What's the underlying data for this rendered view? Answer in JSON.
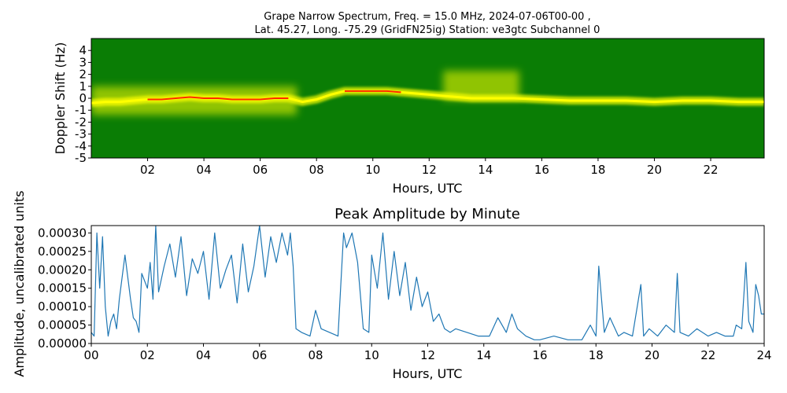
{
  "figure": {
    "title_line1": "Grape Narrow Spectrum, Freq. = 15.0 MHz, 2024-07-06T00-00 ,",
    "title_line2": "Lat.  45.27, Long. -75.29 (GridFN25ig) Station: ve3gtc Subchannel 0"
  },
  "chart_data": [
    {
      "type": "heatmap",
      "title": "",
      "xlabel": "Hours, UTC",
      "ylabel": "Doppler Shift (Hz)",
      "xlim": [
        0,
        23.9
      ],
      "ylim": [
        -5,
        5
      ],
      "x_ticks": [
        2,
        4,
        6,
        8,
        10,
        12,
        14,
        16,
        18,
        20,
        22
      ],
      "x_tick_labels": [
        "02",
        "04",
        "06",
        "08",
        "10",
        "12",
        "14",
        "16",
        "18",
        "20",
        "22"
      ],
      "y_ticks": [
        4,
        3,
        2,
        1,
        0,
        -1,
        -2,
        -3,
        -4,
        -5
      ],
      "y_tick_labels": [
        "4",
        "3",
        "2",
        "1",
        "0",
        "-1",
        "-2",
        "-3",
        "-4",
        "-5"
      ],
      "background_color": "#0a7d05",
      "signal_color": "#ffff00",
      "peak_color": "#ff2a00",
      "doppler_trace": {
        "x": [
          0,
          0.5,
          1,
          1.5,
          2,
          2.5,
          3,
          3.5,
          4,
          4.5,
          5,
          5.5,
          6,
          6.5,
          7,
          7.5,
          8,
          8.5,
          9,
          9.5,
          10,
          10.5,
          11,
          11.5,
          12,
          12.5,
          13,
          13.5,
          14,
          14.5,
          15,
          16,
          17,
          18,
          19,
          20,
          21,
          22,
          23,
          23.9
        ],
        "y": [
          -0.4,
          -0.3,
          -0.3,
          -0.2,
          -0.1,
          -0.1,
          0.0,
          0.1,
          0.0,
          0.0,
          -0.1,
          -0.1,
          -0.1,
          0.0,
          0.0,
          -0.3,
          -0.1,
          0.3,
          0.6,
          0.6,
          0.6,
          0.6,
          0.5,
          0.4,
          0.3,
          0.2,
          0.1,
          0.0,
          0.0,
          0.0,
          0.0,
          -0.1,
          -0.2,
          -0.2,
          -0.2,
          -0.3,
          -0.2,
          -0.2,
          -0.3,
          -0.3
        ]
      },
      "spread_regions": [
        {
          "x0": 0.0,
          "x1": 7.3,
          "y_low": -1.4,
          "y_high": 1.0
        },
        {
          "x0": 12.5,
          "x1": 15.2,
          "y_low": -0.1,
          "y_high": 2.3
        }
      ],
      "grid": false
    },
    {
      "type": "line",
      "title": "Peak Amplitude by Minute",
      "xlabel": "Hours, UTC",
      "ylabel": "Amplitude, uncalibrated units",
      "xlim": [
        0,
        24
      ],
      "ylim": [
        0,
        0.00032
      ],
      "x_ticks": [
        0,
        2,
        4,
        6,
        8,
        10,
        12,
        14,
        16,
        18,
        20,
        22,
        24
      ],
      "x_tick_labels": [
        "00",
        "02",
        "04",
        "06",
        "08",
        "10",
        "12",
        "14",
        "16",
        "18",
        "20",
        "22",
        "24"
      ],
      "y_ticks": [
        0,
        5e-05,
        0.0001,
        0.00015,
        0.0002,
        0.00025,
        0.0003
      ],
      "y_tick_labels": [
        "0.00000",
        "0.00005",
        "0.00010",
        "0.00015",
        "0.00020",
        "0.00025",
        "0.00030"
      ],
      "line_color": "#1f77b4",
      "grid": false,
      "x": [
        0.0,
        0.1,
        0.2,
        0.3,
        0.4,
        0.5,
        0.6,
        0.7,
        0.8,
        0.9,
        1.0,
        1.1,
        1.2,
        1.4,
        1.5,
        1.6,
        1.7,
        1.8,
        2.0,
        2.1,
        2.2,
        2.3,
        2.4,
        2.6,
        2.8,
        3.0,
        3.2,
        3.4,
        3.6,
        3.8,
        4.0,
        4.2,
        4.4,
        4.6,
        4.8,
        5.0,
        5.2,
        5.4,
        5.6,
        5.8,
        6.0,
        6.2,
        6.4,
        6.6,
        6.8,
        7.0,
        7.1,
        7.2,
        7.3,
        7.5,
        7.8,
        8.0,
        8.2,
        8.5,
        8.8,
        9.0,
        9.1,
        9.3,
        9.5,
        9.7,
        9.9,
        10.0,
        10.2,
        10.4,
        10.6,
        10.8,
        11.0,
        11.2,
        11.4,
        11.6,
        11.8,
        12.0,
        12.2,
        12.4,
        12.6,
        12.8,
        13.0,
        13.4,
        13.8,
        14.2,
        14.5,
        14.8,
        15.0,
        15.2,
        15.5,
        15.8,
        16.0,
        16.5,
        17.0,
        17.5,
        17.8,
        18.0,
        18.1,
        18.3,
        18.5,
        18.8,
        19.0,
        19.3,
        19.6,
        19.7,
        19.9,
        20.2,
        20.5,
        20.8,
        20.9,
        21.0,
        21.3,
        21.6,
        22.0,
        22.3,
        22.6,
        22.9,
        23.0,
        23.2,
        23.35,
        23.45,
        23.6,
        23.7,
        23.8,
        23.9,
        24.0
      ],
      "y": [
        3e-05,
        2e-05,
        0.0003,
        0.00015,
        0.00029,
        0.0001,
        2e-05,
        6e-05,
        8e-05,
        4e-05,
        0.00012,
        0.00018,
        0.00024,
        0.00012,
        7e-05,
        6e-05,
        3e-05,
        0.00019,
        0.00015,
        0.00022,
        0.00012,
        0.00032,
        0.00014,
        0.00021,
        0.00027,
        0.00018,
        0.00029,
        0.00013,
        0.00023,
        0.00019,
        0.00025,
        0.00012,
        0.0003,
        0.00015,
        0.0002,
        0.00024,
        0.00011,
        0.00027,
        0.00014,
        0.00021,
        0.00032,
        0.00018,
        0.00029,
        0.00022,
        0.0003,
        0.00024,
        0.0003,
        0.00021,
        4e-05,
        3e-05,
        2e-05,
        9e-05,
        4e-05,
        3e-05,
        2e-05,
        0.0003,
        0.00026,
        0.0003,
        0.00022,
        4e-05,
        3e-05,
        0.00024,
        0.00015,
        0.0003,
        0.00012,
        0.00025,
        0.00013,
        0.00022,
        9e-05,
        0.00018,
        0.0001,
        0.00014,
        6e-05,
        8e-05,
        4e-05,
        3e-05,
        4e-05,
        3e-05,
        2e-05,
        2e-05,
        7e-05,
        3e-05,
        8e-05,
        4e-05,
        2e-05,
        1e-05,
        1e-05,
        2e-05,
        1e-05,
        1e-05,
        5e-05,
        2e-05,
        0.00021,
        3e-05,
        7e-05,
        2e-05,
        3e-05,
        2e-05,
        0.00016,
        2e-05,
        4e-05,
        2e-05,
        5e-05,
        3e-05,
        0.00019,
        3e-05,
        2e-05,
        4e-05,
        2e-05,
        3e-05,
        2e-05,
        2e-05,
        5e-05,
        4e-05,
        0.00022,
        6e-05,
        3e-05,
        0.00016,
        0.00013,
        8e-05,
        8e-05
      ]
    }
  ]
}
